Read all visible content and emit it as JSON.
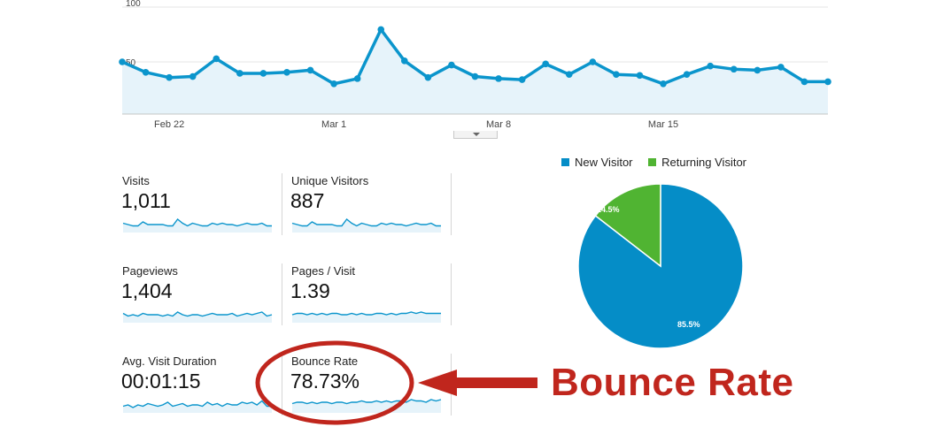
{
  "colors": {
    "series": "#0b95cc",
    "fill": "#e6f3fa",
    "new_visitor": "#058dc7",
    "returning_visitor": "#50b432",
    "annotation": "#c0261d"
  },
  "chart_data": {
    "type": "area",
    "y_tick_labels": [
      "100",
      "50"
    ],
    "ylim": [
      0,
      100
    ],
    "grid": true,
    "x_tick_labels": [
      {
        "label": "Feb 22",
        "index": 2
      },
      {
        "label": "Mar 1",
        "index": 9
      },
      {
        "label": "Mar 8",
        "index": 16
      },
      {
        "label": "Mar 15",
        "index": 23
      }
    ],
    "values": [
      50,
      40,
      35,
      36,
      53,
      39,
      39,
      40,
      42,
      29,
      34,
      81,
      51,
      35,
      47,
      36,
      34,
      33,
      48,
      38,
      50,
      38,
      37,
      29,
      38,
      46,
      43,
      42,
      45,
      31,
      31
    ]
  },
  "metrics": [
    {
      "label": "Visits",
      "value": "1,011",
      "spark": [
        5,
        4,
        3,
        3,
        6,
        4,
        4,
        4,
        4,
        3,
        3,
        8,
        5,
        3,
        5,
        4,
        3,
        3,
        5,
        4,
        5,
        4,
        4,
        3,
        4,
        5,
        4,
        4,
        5,
        3,
        3
      ]
    },
    {
      "label": "Unique Visitors",
      "value": "887",
      "spark": [
        5,
        4,
        3,
        3,
        6,
        4,
        4,
        4,
        4,
        3,
        3,
        8,
        5,
        3,
        5,
        4,
        3,
        3,
        5,
        4,
        5,
        4,
        4,
        3,
        4,
        5,
        4,
        4,
        5,
        3,
        3
      ]
    },
    {
      "label": "Pageviews",
      "value": "1,404",
      "spark": [
        5,
        3,
        4,
        3,
        5,
        4,
        4,
        4,
        3,
        4,
        3,
        6,
        4,
        3,
        4,
        4,
        3,
        4,
        5,
        4,
        4,
        4,
        5,
        3,
        4,
        5,
        4,
        5,
        6,
        3,
        4
      ]
    },
    {
      "label": "Pages / Visit",
      "value": "1.39",
      "spark": [
        4,
        5,
        5,
        4,
        5,
        4,
        5,
        4,
        5,
        5,
        4,
        4,
        5,
        4,
        5,
        4,
        4,
        5,
        5,
        4,
        5,
        4,
        5,
        5,
        6,
        5,
        6,
        5,
        5,
        5,
        5
      ]
    },
    {
      "label": "Avg. Visit Duration",
      "value": "00:01:15",
      "spark": [
        3,
        4,
        2,
        4,
        3,
        5,
        4,
        3,
        4,
        6,
        3,
        4,
        5,
        3,
        4,
        4,
        3,
        6,
        4,
        5,
        3,
        5,
        4,
        4,
        6,
        5,
        6,
        4,
        7,
        3,
        3
      ]
    },
    {
      "label": "Bounce Rate",
      "value": "78.73%",
      "spark": [
        5,
        6,
        6,
        5,
        6,
        5,
        6,
        6,
        5,
        6,
        6,
        5,
        6,
        6,
        7,
        6,
        6,
        7,
        6,
        7,
        6,
        7,
        7,
        6,
        8,
        7,
        7,
        6,
        8,
        7,
        8
      ]
    }
  ],
  "pie": {
    "legend": [
      {
        "label": "New Visitor"
      },
      {
        "label": "Returning Visitor"
      }
    ],
    "slices": [
      {
        "name": "New Visitor",
        "percent": 85.5,
        "label": "85.5%"
      },
      {
        "name": "Returning Visitor",
        "percent": 14.5,
        "label": "14.5%"
      }
    ]
  },
  "annotation": {
    "text": "Bounce Rate"
  }
}
